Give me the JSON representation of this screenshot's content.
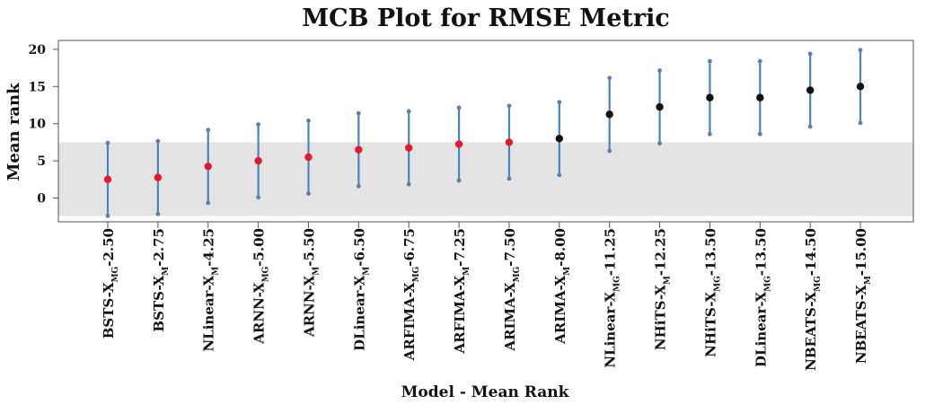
{
  "chart_data": {
    "type": "scatter",
    "title": "MCB Plot for RMSE Metric",
    "xlabel": "Model - Mean Rank",
    "ylabel": "Mean rank",
    "ylim": [
      -3.2,
      21.2
    ],
    "yticks": [
      0,
      5,
      10,
      15,
      20
    ],
    "critical_band": [
      -2.4,
      7.5
    ],
    "colors": {
      "band": "#e4e4e4",
      "interval": "#4a84c0",
      "interval_end": "#5b7fae",
      "within_band": "#e8192c",
      "outside_band": "#111111",
      "frame": "#555555"
    },
    "categories": [
      {
        "base": "BSTS-X",
        "sub": "MG",
        "value": "-2.50"
      },
      {
        "base": "BSTS-X",
        "sub": "M",
        "value": "-2.75"
      },
      {
        "base": "NLinear-X",
        "sub": "M",
        "value": "-4.25"
      },
      {
        "base": "ARNN-X",
        "sub": "MG",
        "value": "-5.00"
      },
      {
        "base": "ARNN-X",
        "sub": "M",
        "value": "-5.50"
      },
      {
        "base": "DLinear-X",
        "sub": "M",
        "value": "-6.50"
      },
      {
        "base": "ARFIMA-X",
        "sub": "MG",
        "value": "-6.75"
      },
      {
        "base": "ARFIMA-X",
        "sub": "M",
        "value": "-7.25"
      },
      {
        "base": "ARIMA-X",
        "sub": "MG",
        "value": "-7.50"
      },
      {
        "base": "ARIMA-X",
        "sub": "M",
        "value": "-8.00"
      },
      {
        "base": "NLinear-X",
        "sub": "MG",
        "value": "-11.25"
      },
      {
        "base": "NHiTS-X",
        "sub": "M",
        "value": "-12.25"
      },
      {
        "base": "NHiTS-X",
        "sub": "MG",
        "value": "-13.50"
      },
      {
        "base": "DLinear-X",
        "sub": "MG",
        "value": "-13.50"
      },
      {
        "base": "NBEATS-X",
        "sub": "MG",
        "value": "-14.50"
      },
      {
        "base": "NBEATS-X",
        "sub": "M",
        "value": "-15.00"
      }
    ],
    "mean_rank": [
      2.5,
      2.75,
      4.25,
      5.0,
      5.5,
      6.5,
      6.75,
      7.25,
      7.5,
      8.0,
      11.25,
      12.25,
      13.5,
      13.5,
      14.5,
      15.0
    ],
    "lower": [
      -2.4,
      -2.15,
      -0.65,
      0.1,
      0.6,
      1.6,
      1.85,
      2.35,
      2.6,
      3.1,
      6.35,
      7.35,
      8.6,
      8.6,
      9.6,
      10.1
    ],
    "upper": [
      7.4,
      7.65,
      9.15,
      9.9,
      10.4,
      11.4,
      11.65,
      12.15,
      12.4,
      12.9,
      16.15,
      17.15,
      18.4,
      18.4,
      19.4,
      19.9
    ]
  }
}
